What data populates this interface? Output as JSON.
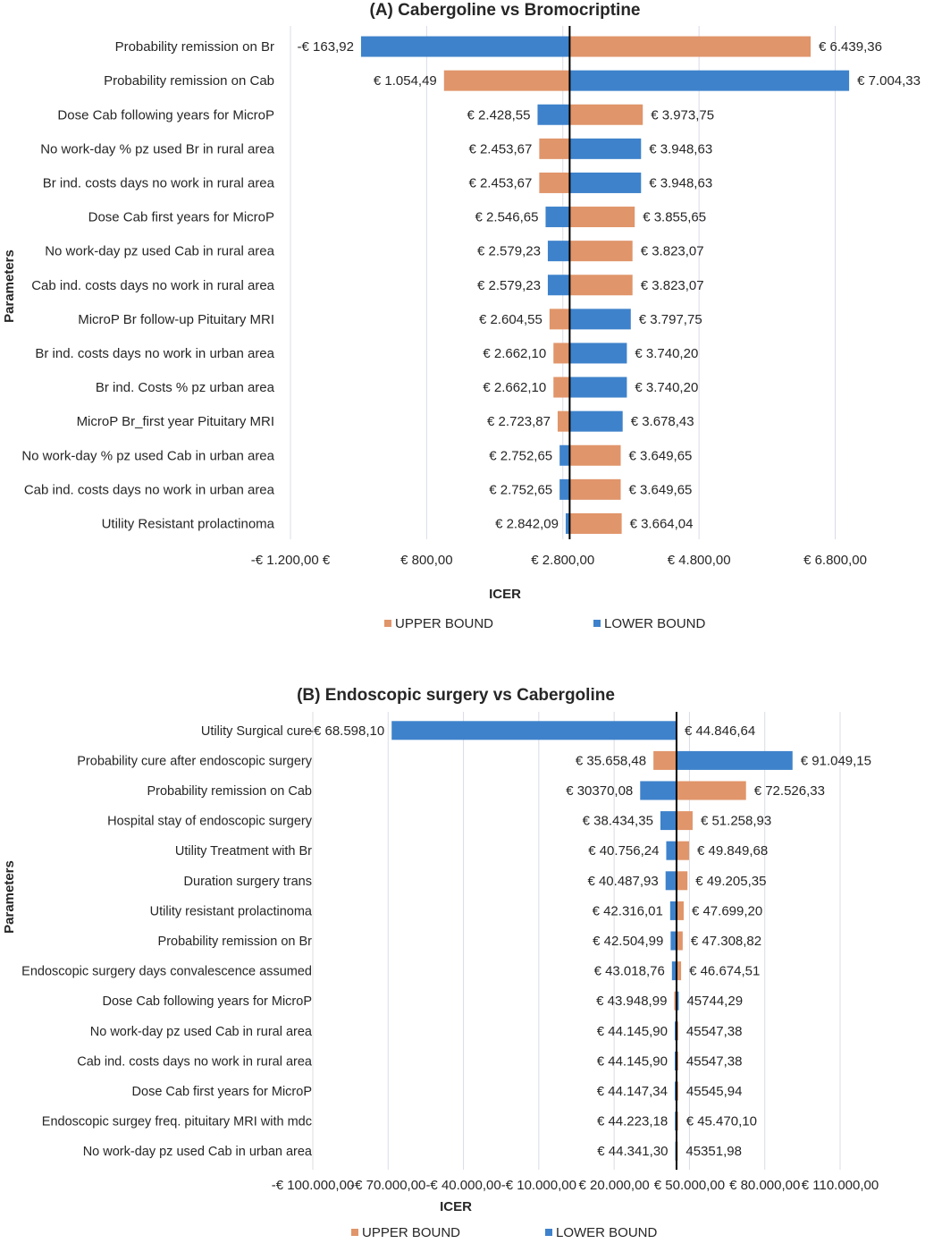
{
  "chart_data": [
    {
      "type": "tornado",
      "title": "(A) Cabergoline  vs Bromocriptine",
      "ylabel": "Parameters",
      "xlabel": "ICER",
      "base": 2900,
      "xlim": [
        -1200,
        7200
      ],
      "tick_values": [
        -1200,
        800,
        2800,
        4800,
        6800
      ],
      "tick_labels": [
        "-€ 1.200,00 €",
        "€ 800,00",
        "€ 2.800,00",
        "€ 4.800,00",
        "€ 6.800,00"
      ],
      "colors": {
        "upper": "#e0956a",
        "lower": "#3e82cb"
      },
      "legend": {
        "upper": "UPPER BOUND",
        "lower": "LOWER BOUND"
      },
      "rows": [
        {
          "param": "Probability remission on Br",
          "left": -163.92,
          "left_label": "-€ 163,92",
          "left_series": "lower",
          "right": 6439.36,
          "right_label": "€ 6.439,36",
          "right_series": "upper"
        },
        {
          "param": "Probability remission on Cab",
          "left": 1054.49,
          "left_label": "€ 1.054,49",
          "left_series": "upper",
          "right": 7004.33,
          "right_label": "€ 7.004,33",
          "right_series": "lower"
        },
        {
          "param": "Dose Cab following years for MicroP",
          "left": 2428.55,
          "left_label": "€ 2.428,55",
          "left_series": "lower",
          "right": 3973.75,
          "right_label": "€ 3.973,75",
          "right_series": "upper"
        },
        {
          "param": "No work-day % pz used Br in rural area",
          "left": 2453.67,
          "left_label": "€ 2.453,67",
          "left_series": "upper",
          "right": 3948.63,
          "right_label": "€ 3.948,63",
          "right_series": "lower"
        },
        {
          "param": "Br ind. costs days no work in rural area",
          "left": 2453.67,
          "left_label": "€ 2.453,67",
          "left_series": "upper",
          "right": 3948.63,
          "right_label": "€ 3.948,63",
          "right_series": "lower"
        },
        {
          "param": "Dose Cab first years for MicroP",
          "left": 2546.65,
          "left_label": "€ 2.546,65",
          "left_series": "lower",
          "right": 3855.65,
          "right_label": "€ 3.855,65",
          "right_series": "upper"
        },
        {
          "param": "No work-day pz used Cab in rural area",
          "left": 2579.23,
          "left_label": "€ 2.579,23",
          "left_series": "lower",
          "right": 3823.07,
          "right_label": "€ 3.823,07",
          "right_series": "upper"
        },
        {
          "param": "Cab ind. costs days no work in rural area",
          "left": 2579.23,
          "left_label": "€ 2.579,23",
          "left_series": "lower",
          "right": 3823.07,
          "right_label": "€ 3.823,07",
          "right_series": "upper"
        },
        {
          "param": "MicroP Br follow-up Pituitary MRI",
          "left": 2604.55,
          "left_label": "€ 2.604,55",
          "left_series": "upper",
          "right": 3797.75,
          "right_label": "€ 3.797,75",
          "right_series": "lower"
        },
        {
          "param": "Br ind. costs days no work in urban area",
          "left": 2662.1,
          "left_label": "€ 2.662,10",
          "left_series": "upper",
          "right": 3740.2,
          "right_label": "€ 3.740,20",
          "right_series": "lower"
        },
        {
          "param": "Br ind. Costs % pz urban area",
          "left": 2662.1,
          "left_label": "€ 2.662,10",
          "left_series": "upper",
          "right": 3740.2,
          "right_label": "€ 3.740,20",
          "right_series": "lower"
        },
        {
          "param": "MicroP Br_first year Pituitary MRI",
          "left": 2723.87,
          "left_label": "€ 2.723,87",
          "left_series": "upper",
          "right": 3678.43,
          "right_label": "€ 3.678,43",
          "right_series": "lower"
        },
        {
          "param": "No work-day % pz used Cab in urban area",
          "left": 2752.65,
          "left_label": "€ 2.752,65",
          "left_series": "lower",
          "right": 3649.65,
          "right_label": "€ 3.649,65",
          "right_series": "upper"
        },
        {
          "param": "Cab ind. costs days no work in urban area",
          "left": 2752.65,
          "left_label": "€ 2.752,65",
          "left_series": "lower",
          "right": 3649.65,
          "right_label": "€ 3.649,65",
          "right_series": "upper"
        },
        {
          "param": "Utility Resistant prolactinoma",
          "left": 2842.09,
          "left_label": "€ 2.842,09",
          "left_series": "lower",
          "right": 3664.04,
          "right_label": "€ 3.664,04",
          "right_series": "upper"
        }
      ]
    },
    {
      "type": "tornado",
      "title": "(B) Endoscopic surgery vs Cabergoline",
      "ylabel": "Parameters",
      "xlabel": "ICER",
      "base": 44846.64,
      "xlim": [
        -100000,
        110000
      ],
      "tick_values": [
        -100000,
        -70000,
        -40000,
        -10000,
        20000,
        50000,
        80000,
        110000
      ],
      "tick_labels": [
        "-€ 100.000,00",
        "-€ 70.000,00",
        "-€ 40.000,00",
        "-€ 10.000,00",
        "€ 20.000,00",
        "€ 50.000,00",
        "€ 80.000,00",
        "€ 110.000,00"
      ],
      "colors": {
        "upper": "#e0956a",
        "lower": "#3e82cb"
      },
      "legend": {
        "upper": "UPPER BOUND",
        "lower": "LOWER BOUND"
      },
      "rows": [
        {
          "param": "Utility Surgical cure",
          "left": -68598.1,
          "left_label": "-€ 68.598,10",
          "left_series": "lower",
          "right": 44846.64,
          "right_label": "€ 44.846,64",
          "right_series": "upper"
        },
        {
          "param": "Probability cure after endoscopic surgery",
          "left": 35658.48,
          "left_label": "€ 35.658,48",
          "left_series": "upper",
          "right": 91049.15,
          "right_label": "€ 91.049,15",
          "right_series": "lower"
        },
        {
          "param": "Probability remission on Cab",
          "left": 30370.08,
          "left_label": "€ 30370,08",
          "left_series": "lower",
          "right": 72526.33,
          "right_label": "€ 72.526,33",
          "right_series": "upper"
        },
        {
          "param": "Hospital stay of endoscopic surgery",
          "left": 38434.35,
          "left_label": "€ 38.434,35",
          "left_series": "lower",
          "right": 51258.93,
          "right_label": "€ 51.258,93",
          "right_series": "upper"
        },
        {
          "param": "Utility Treatment with Br",
          "left": 40756.24,
          "left_label": "€ 40.756,24",
          "left_series": "lower",
          "right": 49849.68,
          "right_label": "€ 49.849,68",
          "right_series": "upper"
        },
        {
          "param": "Duration surgery trans",
          "left": 40487.93,
          "left_label": "€ 40.487,93",
          "left_series": "lower",
          "right": 49205.35,
          "right_label": "€ 49.205,35",
          "right_series": "upper"
        },
        {
          "param": "Utility resistant prolactinoma",
          "left": 42316.01,
          "left_label": "€ 42.316,01",
          "left_series": "lower",
          "right": 47699.2,
          "right_label": "€ 47.699,20",
          "right_series": "upper"
        },
        {
          "param": "Probability remission on Br",
          "left": 42504.99,
          "left_label": "€ 42.504,99",
          "left_series": "lower",
          "right": 47308.82,
          "right_label": "€ 47.308,82",
          "right_series": "upper"
        },
        {
          "param": "Endoscopic surgery days convalescence assumed",
          "left": 43018.76,
          "left_label": "€ 43.018,76",
          "left_series": "lower",
          "right": 46674.51,
          "right_label": "€ 46.674,51",
          "right_series": "upper"
        },
        {
          "param": "Dose Cab following years for MicroP",
          "left": 43948.99,
          "left_label": "€ 43.948,99",
          "left_series": "upper",
          "right": 45744.29,
          "right_label": "45744,29",
          "right_series": "lower"
        },
        {
          "param": "No work-day pz used Cab in rural area",
          "left": 44145.9,
          "left_label": "€ 44.145,90",
          "left_series": "lower",
          "right": 45547.38,
          "right_label": "45547,38",
          "right_series": "upper"
        },
        {
          "param": "Cab ind. costs days no work in rural area",
          "left": 44145.9,
          "left_label": "€ 44.145,90",
          "left_series": "lower",
          "right": 45547.38,
          "right_label": "45547,38",
          "right_series": "upper"
        },
        {
          "param": "Dose Cab first years for MicroP",
          "left": 44147.34,
          "left_label": "€ 44.147,34",
          "left_series": "lower",
          "right": 45545.94,
          "right_label": "45545,94",
          "right_series": "upper"
        },
        {
          "param": "Endoscopic surgey freq. pituitary MRI with mdc",
          "left": 44223.18,
          "left_label": "€ 44.223,18",
          "left_series": "lower",
          "right": 45470.1,
          "right_label": "€ 45.470,10",
          "right_series": "upper"
        },
        {
          "param": "No work-day pz used Cab in urban area",
          "left": 44341.3,
          "left_label": "€ 44.341,30",
          "left_series": "lower",
          "right": 45351.98,
          "right_label": "45351,98",
          "right_series": "upper"
        }
      ]
    }
  ]
}
